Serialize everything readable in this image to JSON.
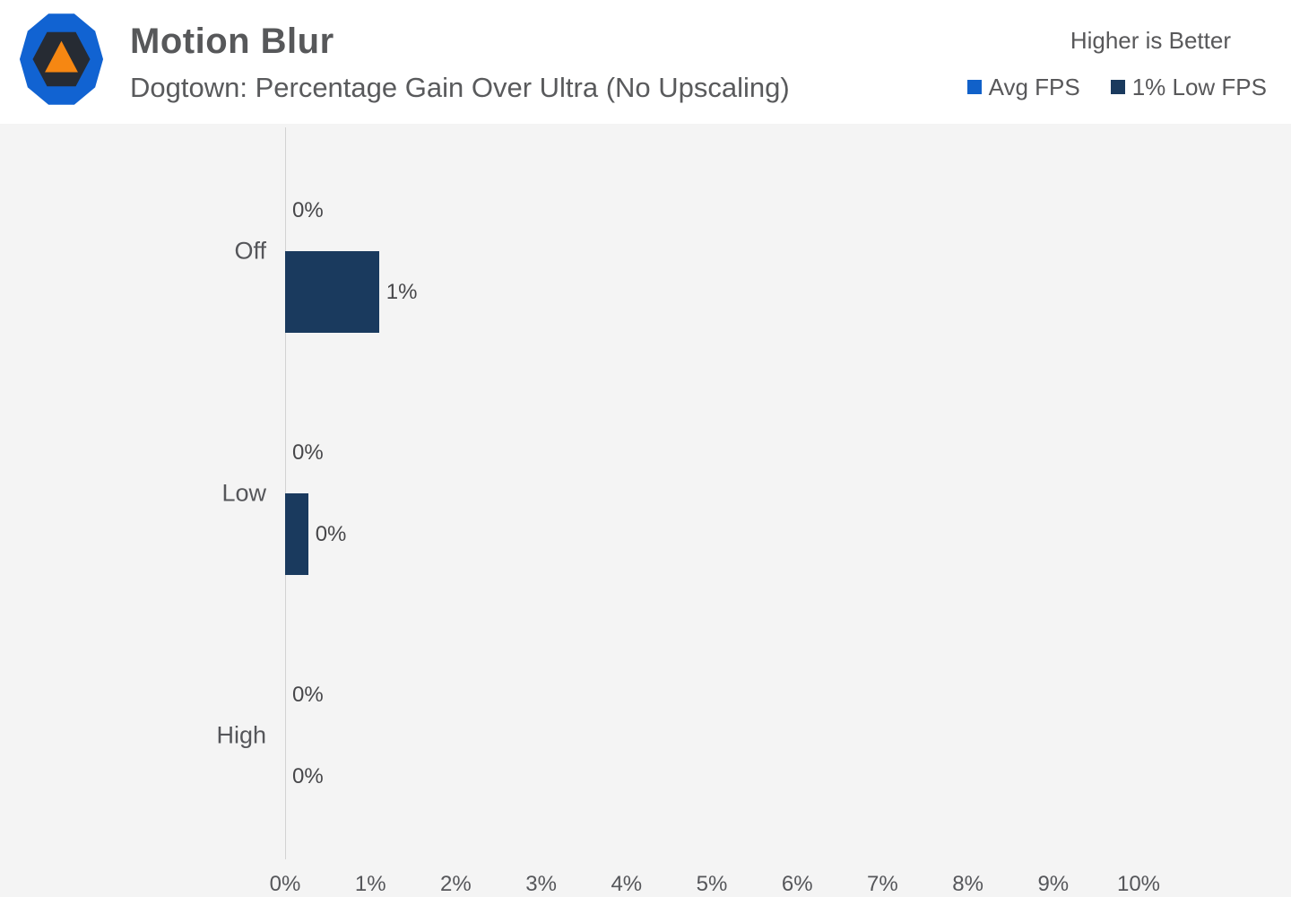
{
  "header": {
    "title": "Motion Blur",
    "subtitle": "Dogtown: Percentage Gain Over Ultra (No Upscaling)",
    "note": "Higher is Better",
    "legend": [
      {
        "label": "Avg FPS",
        "color": "#1161c9"
      },
      {
        "label": "1% Low FPS",
        "color": "#1a3a5e"
      }
    ]
  },
  "chart_data": {
    "type": "bar",
    "orientation": "horizontal",
    "title": "Motion Blur",
    "subtitle": "Dogtown: Percentage Gain Over Ultra (No Upscaling)",
    "categories": [
      "Off",
      "Low",
      "High"
    ],
    "series": [
      {
        "name": "Avg FPS",
        "color": "#1161c9",
        "values": [
          0,
          0,
          0
        ],
        "labels": [
          "0%",
          "0%",
          "0%"
        ]
      },
      {
        "name": "1% Low FPS",
        "color": "#1a3a5e",
        "values": [
          1.1,
          0.27,
          0
        ],
        "labels": [
          "1%",
          "0%",
          "0%"
        ]
      }
    ],
    "xlabel": "",
    "ylabel": "",
    "xlim": [
      0,
      10
    ],
    "x_ticks": [
      "0%",
      "1%",
      "2%",
      "3%",
      "4%",
      "5%",
      "6%",
      "7%",
      "8%",
      "9%",
      "10%"
    ],
    "grid": false,
    "legend_position": "top-right"
  },
  "colors": {
    "header_bg": "#ffffff",
    "chart_bg": "#f4f4f4",
    "axis_line": "#d3d3d3",
    "text": "#58585a",
    "logo_blue": "#1163d2",
    "logo_dark": "#262b33",
    "logo_orange": "#f68712"
  }
}
